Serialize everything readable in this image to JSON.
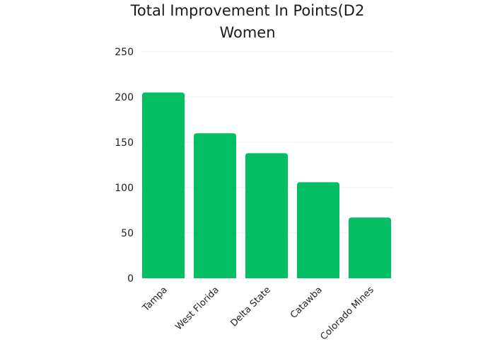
{
  "chart_data": {
    "type": "bar",
    "title_lines": [
      "Total Improvement In Points(D2",
      "Women"
    ],
    "categories": [
      "Tampa",
      "West Florida",
      "Delta State",
      "Catawba",
      "Colorado Mines"
    ],
    "values": [
      205,
      160,
      138,
      106,
      67
    ],
    "ylim": [
      0,
      250
    ],
    "yticks": [
      0,
      50,
      100,
      150,
      200,
      250
    ],
    "xlabel": "",
    "ylabel": "",
    "grid": true,
    "legend": "none",
    "bar_color": "#03BE63",
    "grid_color": "#ECECEC"
  }
}
